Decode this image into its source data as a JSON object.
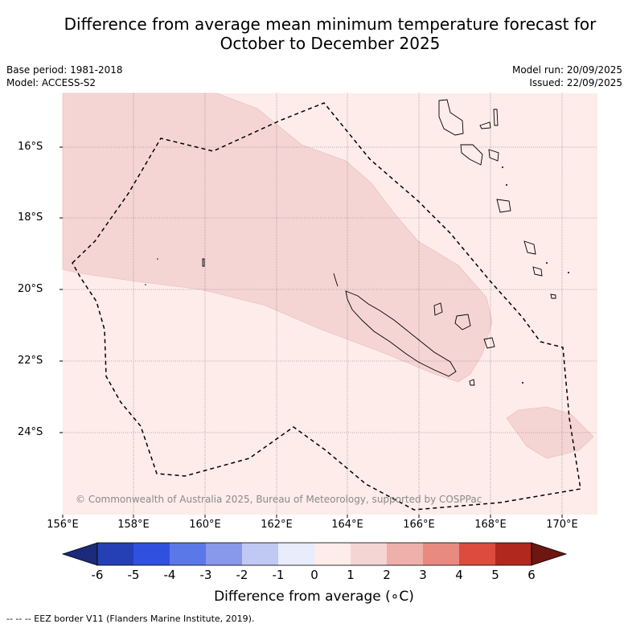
{
  "title": {
    "line1": "Difference from average mean minimum temperature forecast for",
    "line2": "October to December 2025"
  },
  "meta": {
    "base_period": "Base period: 1981-2018",
    "model": "Model: ACCESS-S2",
    "model_run": "Model run: 20/09/2025",
    "issued": "Issued: 22/09/2025"
  },
  "axes": {
    "lat_labels": [
      "16°S",
      "18°S",
      "20°S",
      "22°S",
      "24°S"
    ],
    "lon_labels": [
      "156°E",
      "158°E",
      "160°E",
      "162°E",
      "164°E",
      "166°E",
      "168°E",
      "170°E"
    ]
  },
  "copyright": "© Commonwealth of Australia 2025, Bureau of Meteorology, supported by COSPPac",
  "colorbar": {
    "tick_labels": [
      "-6",
      "-5",
      "-4",
      "-3",
      "-2",
      "-1",
      "0",
      "1",
      "2",
      "3",
      "4",
      "5",
      "6"
    ],
    "colors": [
      "#1b2a7a",
      "#2440b4",
      "#3050e0",
      "#5a78e8",
      "#8898ea",
      "#c0c8f4",
      "#e8ecfb",
      "#fdecea",
      "#f5d5d4",
      "#eeb0aa",
      "#e88a80",
      "#dd4a3e",
      "#b0281e",
      "#6e1612"
    ],
    "title": "Difference from average (∘C)"
  },
  "footer": "--  --  -- EEZ border V11 (Flanders Marine Institute, 2019).",
  "map_colors": {
    "background_anomaly_0_1": "#fdecea",
    "anomaly_1_2": "#f5d5d4"
  }
}
